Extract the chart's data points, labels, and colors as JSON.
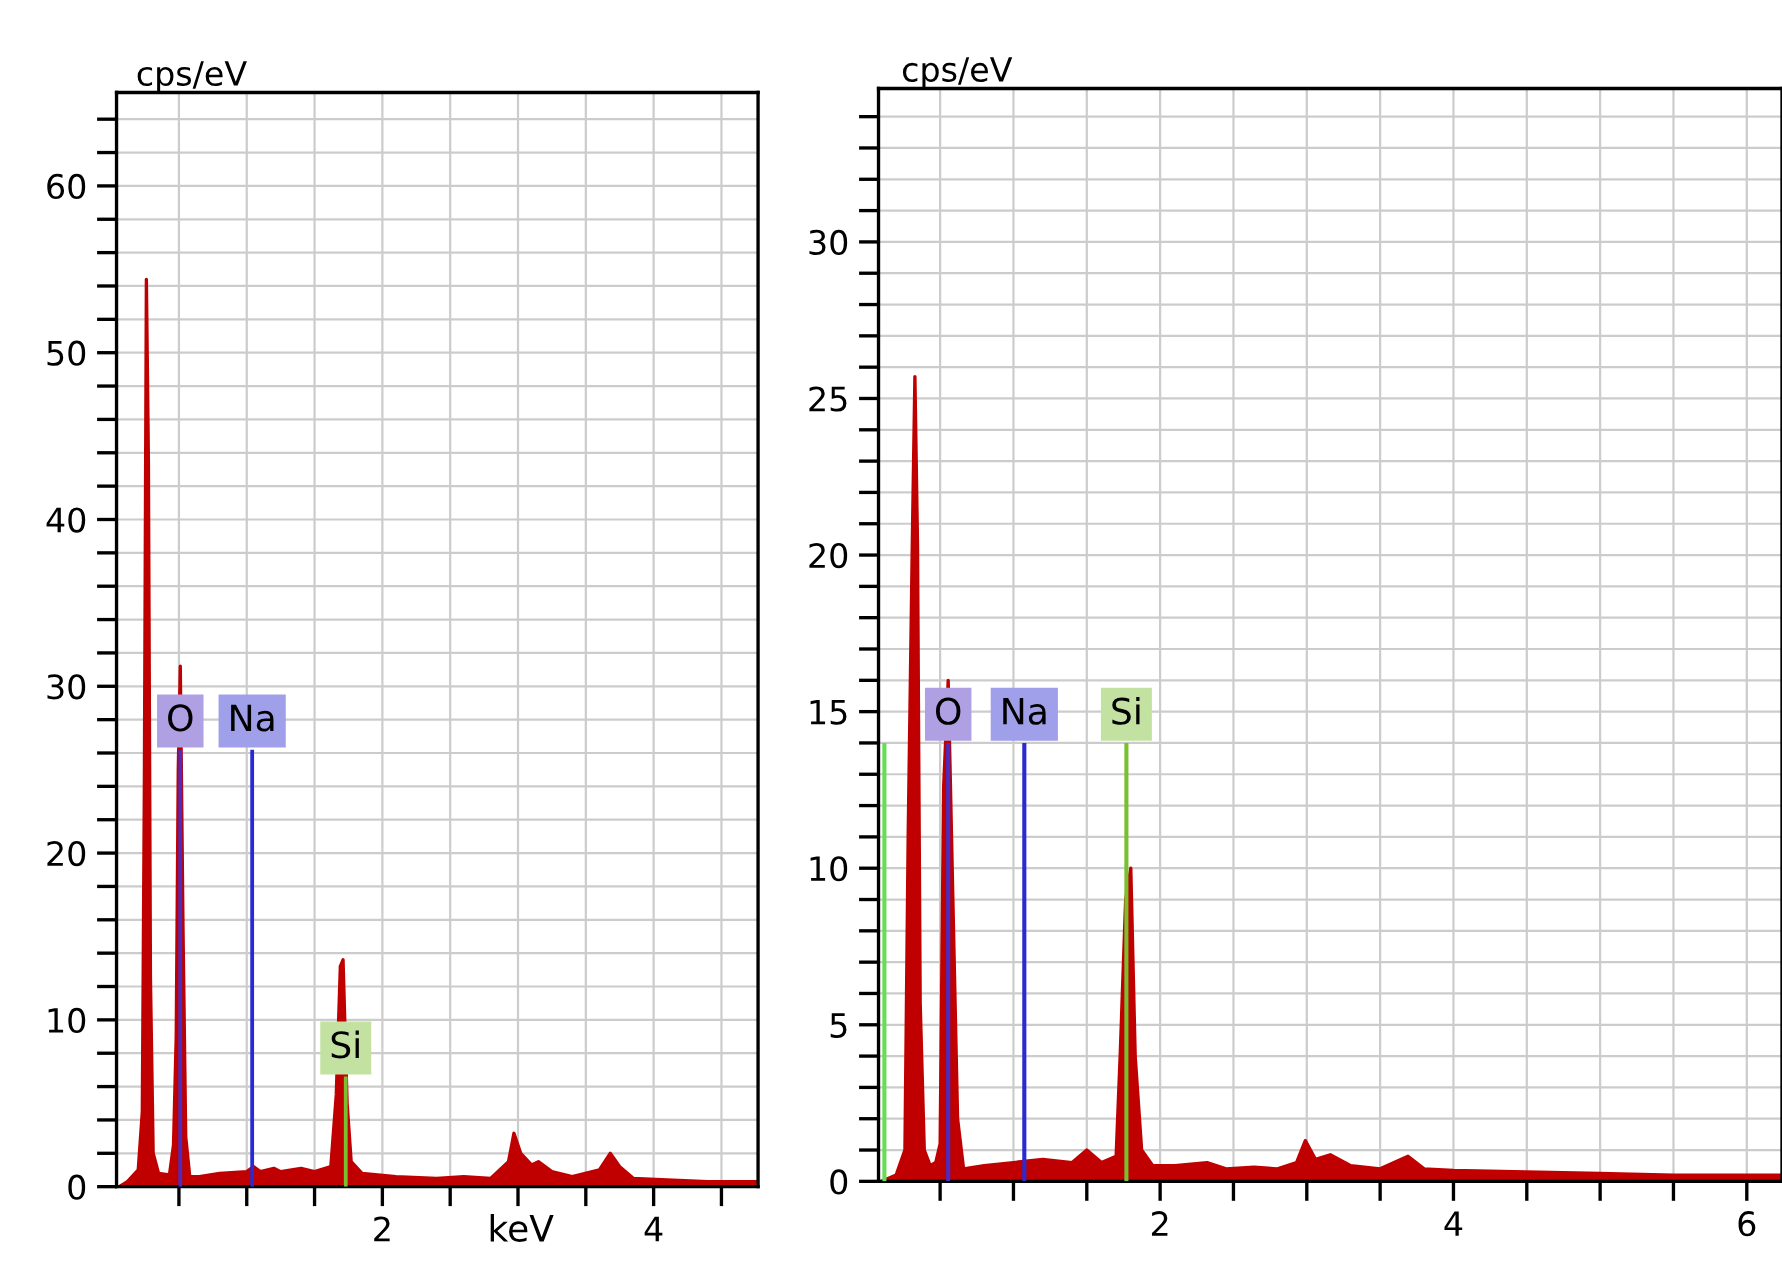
{
  "chart_data": [
    {
      "type": "area",
      "ylabel": "cps/eV",
      "xlabel": "keV",
      "grid": true,
      "xlim": [
        0.04,
        4.77
      ],
      "ylim": [
        0,
        65.6
      ],
      "xticks": [
        {
          "value": 0.5,
          "label": null
        },
        {
          "value": 1.0,
          "label": null
        },
        {
          "value": 1.5,
          "label": null
        },
        2,
        {
          "value": 2.5,
          "label": null
        },
        {
          "value": 3.0,
          "label": null
        },
        {
          "value": 3.5,
          "label": null
        },
        4,
        {
          "value": 4.5,
          "label": null
        }
      ],
      "yticks": [
        0,
        {
          "value": 2,
          "label": null
        },
        {
          "value": 4,
          "label": null
        },
        {
          "value": 6,
          "label": null
        },
        {
          "value": 8,
          "label": null
        },
        10,
        {
          "value": 12,
          "label": null
        },
        {
          "value": 14,
          "label": null
        },
        {
          "value": 16,
          "label": null
        },
        {
          "value": 18,
          "label": null
        },
        20,
        {
          "value": 22,
          "label": null
        },
        {
          "value": 24,
          "label": null
        },
        {
          "value": 26,
          "label": null
        },
        {
          "value": 28,
          "label": null
        },
        30,
        {
          "value": 32,
          "label": null
        },
        {
          "value": 34,
          "label": null
        },
        {
          "value": 36,
          "label": null
        },
        {
          "value": 38,
          "label": null
        },
        40,
        {
          "value": 42,
          "label": null
        },
        {
          "value": 44,
          "label": null
        },
        {
          "value": 46,
          "label": null
        },
        {
          "value": 48,
          "label": null
        },
        50,
        {
          "value": 52,
          "label": null
        },
        {
          "value": 54,
          "label": null
        },
        {
          "value": 56,
          "label": null
        },
        {
          "value": 58,
          "label": null
        },
        60,
        {
          "value": 62,
          "label": null
        },
        {
          "value": 64,
          "label": null
        }
      ],
      "series": [
        {
          "color": "#c00000",
          "x": [
            0.06,
            0.12,
            0.2,
            0.23,
            0.245,
            0.26,
            0.275,
            0.29,
            0.31,
            0.35,
            0.43,
            0.46,
            0.48,
            0.495,
            0.51,
            0.53,
            0.55,
            0.58,
            0.65,
            0.8,
            1.0,
            1.05,
            1.1,
            1.2,
            1.25,
            1.4,
            1.5,
            1.62,
            1.66,
            1.69,
            1.71,
            1.74,
            1.77,
            1.85,
            2.1,
            2.4,
            2.6,
            2.8,
            2.93,
            2.97,
            3.02,
            3.1,
            3.15,
            3.25,
            3.4,
            3.6,
            3.68,
            3.75,
            3.85,
            4.1,
            4.4,
            4.76
          ],
          "values": [
            0,
            0.3,
            1.0,
            4.5,
            24,
            54.4,
            43.5,
            12.5,
            2,
            0.8,
            0.7,
            2.5,
            9,
            25,
            31.2,
            15.5,
            3,
            0.6,
            0.6,
            0.8,
            0.9,
            1.2,
            0.9,
            1.1,
            0.9,
            1.1,
            0.9,
            1.2,
            5.5,
            13.2,
            13.6,
            5,
            1.5,
            0.8,
            0.6,
            0.5,
            0.6,
            0.5,
            1.5,
            3.2,
            2.0,
            1.3,
            1.5,
            0.9,
            0.6,
            1.0,
            2.0,
            1.2,
            0.5,
            0.4,
            0.3,
            0.3
          ]
        },
        {
          "type": "bar",
          "x": [
            0.51,
            1.04,
            1.73
          ],
          "values": [
            26.2,
            26.2,
            6.6
          ],
          "colors": [
            "#4a2cc0",
            "#2a2ad0",
            "#7abf30"
          ],
          "value_labels": [
            "O",
            "Na",
            "Si"
          ]
        }
      ]
    },
    {
      "type": "area",
      "ylabel": "cps/eV",
      "grid": true,
      "xlim": [
        0.08,
        6.24
      ],
      "ylim": [
        0,
        34.9
      ],
      "xticks": [
        {
          "value": 0.5,
          "label": null
        },
        {
          "value": 1.0,
          "label": null
        },
        {
          "value": 1.5,
          "label": null
        },
        2,
        {
          "value": 2.5,
          "label": null
        },
        {
          "value": 3.0,
          "label": null
        },
        {
          "value": 3.5,
          "label": null
        },
        4,
        {
          "value": 4.5,
          "label": null
        },
        {
          "value": 5.0,
          "label": null
        },
        {
          "value": 5.5,
          "label": null
        },
        6
      ],
      "yticks": [
        0,
        {
          "value": 1,
          "label": null
        },
        {
          "value": 2,
          "label": null
        },
        {
          "value": 3,
          "label": null
        },
        {
          "value": 4,
          "label": null
        },
        5,
        {
          "value": 6,
          "label": null
        },
        {
          "value": 7,
          "label": null
        },
        {
          "value": 8,
          "label": null
        },
        {
          "value": 9,
          "label": null
        },
        10,
        {
          "value": 11,
          "label": null
        },
        {
          "value": 12,
          "label": null
        },
        {
          "value": 13,
          "label": null
        },
        {
          "value": 14,
          "label": null
        },
        15,
        {
          "value": 16,
          "label": null
        },
        {
          "value": 17,
          "label": null
        },
        {
          "value": 18,
          "label": null
        },
        {
          "value": 19,
          "label": null
        },
        20,
        {
          "value": 21,
          "label": null
        },
        {
          "value": 22,
          "label": null
        },
        {
          "value": 23,
          "label": null
        },
        {
          "value": 24,
          "label": null
        },
        25,
        {
          "value": 26,
          "label": null
        },
        {
          "value": 27,
          "label": null
        },
        {
          "value": 28,
          "label": null
        },
        {
          "value": 29,
          "label": null
        },
        30,
        {
          "value": 31,
          "label": null
        },
        {
          "value": 32,
          "label": null
        },
        {
          "value": 33,
          "label": null
        },
        {
          "value": 34,
          "label": null
        }
      ],
      "series": [
        {
          "color": "#c00000",
          "x": [
            0.1,
            0.2,
            0.26,
            0.282,
            0.31,
            0.328,
            0.346,
            0.364,
            0.392,
            0.432,
            0.47,
            0.5,
            0.524,
            0.555,
            0.592,
            0.619,
            0.66,
            0.8,
            1.0,
            1.2,
            1.4,
            1.5,
            1.6,
            1.7,
            1.729,
            1.765,
            1.8,
            1.83,
            1.874,
            1.95,
            2.1,
            2.32,
            2.45,
            2.64,
            2.8,
            2.93,
            2.99,
            3.06,
            3.16,
            3.3,
            3.5,
            3.69,
            3.8,
            4.0,
            4.5,
            5.0,
            5.5,
            6.24
          ],
          "values": [
            0,
            0.2,
            1.0,
            11,
            20.3,
            25.7,
            20.3,
            5.7,
            1.0,
            0.5,
            0.6,
            1.2,
            12.6,
            16.0,
            7.9,
            2.0,
            0.4,
            0.5,
            0.6,
            0.7,
            0.6,
            1.0,
            0.6,
            0.8,
            4.2,
            9.0,
            10.0,
            4.0,
            1.0,
            0.5,
            0.5,
            0.6,
            0.4,
            0.45,
            0.4,
            0.6,
            1.3,
            0.7,
            0.85,
            0.5,
            0.4,
            0.8,
            0.4,
            0.35,
            0.3,
            0.25,
            0.2,
            0.2
          ]
        },
        {
          "type": "bar",
          "x": [
            0.12,
            0.555,
            1.074,
            1.77
          ],
          "values": [
            14.0,
            14.0,
            14.0,
            14.0
          ],
          "colors": [
            "#66dd55",
            "#4a2cc0",
            "#2a2ad0",
            "#7abf30"
          ],
          "value_labels": [
            null,
            "O",
            "Na",
            "Si"
          ]
        }
      ]
    }
  ]
}
